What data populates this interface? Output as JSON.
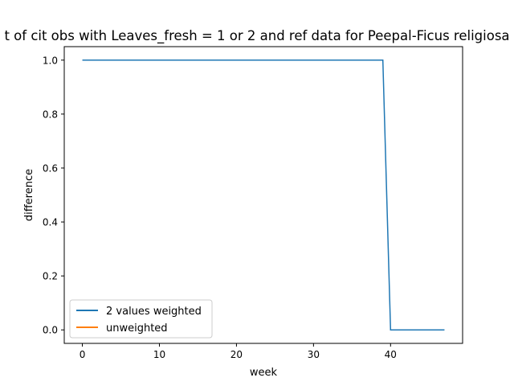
{
  "chart_data": {
    "type": "line",
    "title": "t of cit obs with Leaves_fresh = 1 or 2 and ref data for Peepal-Ficus religiosa",
    "xlabel": "week",
    "ylabel": "difference",
    "xlim": [
      -2.35,
      49.35
    ],
    "ylim": [
      -0.05,
      1.05
    ],
    "xticks": [
      0,
      10,
      20,
      30,
      40
    ],
    "yticks": [
      0.0,
      0.2,
      0.4,
      0.6,
      0.8,
      1.0
    ],
    "xtick_labels": [
      "0",
      "10",
      "20",
      "30",
      "40"
    ],
    "ytick_labels": [
      "0.0",
      "0.2",
      "0.4",
      "0.6",
      "0.8",
      "1.0"
    ],
    "grid": false,
    "legend_position": "lower-left",
    "series": [
      {
        "name": "2 values weighted",
        "color": "#1f77b4",
        "x": [
          0,
          1,
          2,
          3,
          4,
          5,
          6,
          7,
          8,
          9,
          10,
          11,
          12,
          13,
          14,
          15,
          16,
          17,
          18,
          19,
          20,
          21,
          22,
          23,
          24,
          25,
          26,
          27,
          28,
          29,
          30,
          31,
          32,
          33,
          34,
          35,
          36,
          37,
          38,
          39,
          40,
          41,
          42,
          43,
          44,
          45,
          46,
          47
        ],
        "y": [
          1,
          1,
          1,
          1,
          1,
          1,
          1,
          1,
          1,
          1,
          1,
          1,
          1,
          1,
          1,
          1,
          1,
          1,
          1,
          1,
          1,
          1,
          1,
          1,
          1,
          1,
          1,
          1,
          1,
          1,
          1,
          1,
          1,
          1,
          1,
          1,
          1,
          1,
          1,
          1,
          0,
          0,
          0,
          0,
          0,
          0,
          0,
          0
        ]
      },
      {
        "name": "unweighted",
        "color": "#ff7f0e",
        "x": [],
        "y": []
      }
    ]
  }
}
